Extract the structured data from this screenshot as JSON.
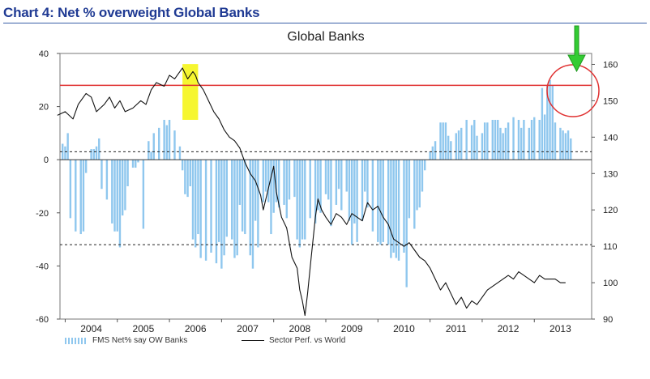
{
  "heading": "Chart 4: Net % overweight Global Banks",
  "chart_data": {
    "type": "bar+line",
    "title": "Global Banks",
    "xlabel": "",
    "ylabel_left": "",
    "ylabel_right": "",
    "x_ticks": [
      "2004",
      "2005",
      "2006",
      "2007",
      "2008",
      "2009",
      "2010",
      "2011",
      "2012",
      "2013"
    ],
    "x_range": [
      2003.9,
      2014.1
    ],
    "y_left": {
      "range": [
        -60,
        40
      ],
      "ticks": [
        40,
        20,
        0,
        -20,
        -40,
        -60
      ]
    },
    "y_right": {
      "range": [
        90,
        163
      ],
      "ticks": [
        160,
        150,
        140,
        130,
        120,
        110,
        100,
        90
      ]
    },
    "reference_lines": {
      "red_solid_left": 28,
      "dashed_upper_left": 3,
      "dashed_lower_left": -32
    },
    "series": [
      {
        "name": "FMS Net% say OW Banks",
        "type": "bar",
        "axis": "left",
        "color": "#8fc7ee",
        "x": [
          2003.95,
          2004.0,
          2004.05,
          2004.1,
          2004.2,
          2004.3,
          2004.35,
          2004.4,
          2004.5,
          2004.55,
          2004.6,
          2004.65,
          2004.7,
          2004.8,
          2004.9,
          2004.95,
          2005.0,
          2005.05,
          2005.1,
          2005.15,
          2005.2,
          2005.3,
          2005.35,
          2005.4,
          2005.5,
          2005.6,
          2005.65,
          2005.7,
          2005.8,
          2005.9,
          2005.95,
          2006.0,
          2006.1,
          2006.2,
          2006.25,
          2006.3,
          2006.35,
          2006.4,
          2006.45,
          2006.5,
          2006.55,
          2006.6,
          2006.7,
          2006.8,
          2006.9,
          2006.95,
          2007.0,
          2007.05,
          2007.1,
          2007.2,
          2007.25,
          2007.3,
          2007.35,
          2007.4,
          2007.45,
          2007.55,
          2007.6,
          2007.65,
          2007.7,
          2007.8,
          2007.85,
          2007.9,
          2007.95,
          2008.0,
          2008.05,
          2008.1,
          2008.2,
          2008.25,
          2008.3,
          2008.4,
          2008.45,
          2008.5,
          2008.55,
          2008.6,
          2008.7,
          2008.8,
          2008.85,
          2008.9,
          2009.0,
          2009.05,
          2009.1,
          2009.2,
          2009.25,
          2009.3,
          2009.4,
          2009.45,
          2009.5,
          2009.55,
          2009.6,
          2009.7,
          2009.75,
          2009.8,
          2009.9,
          2010.0,
          2010.05,
          2010.1,
          2010.2,
          2010.25,
          2010.3,
          2010.35,
          2010.4,
          2010.5,
          2010.55,
          2010.6,
          2010.7,
          2010.75,
          2010.8,
          2010.85,
          2010.9,
          2011.0,
          2011.05,
          2011.1,
          2011.2,
          2011.25,
          2011.3,
          2011.35,
          2011.4,
          2011.5,
          2011.55,
          2011.6,
          2011.7,
          2011.8,
          2011.85,
          2011.9,
          2012.0,
          2012.05,
          2012.1,
          2012.2,
          2012.25,
          2012.3,
          2012.35,
          2012.4,
          2012.45,
          2012.5,
          2012.6,
          2012.7,
          2012.75,
          2012.8,
          2012.9,
          2012.95,
          2013.0,
          2013.1,
          2013.15,
          2013.2,
          2013.25,
          2013.3,
          2013.35,
          2013.4,
          2013.5,
          2013.55,
          2013.6,
          2013.65,
          2013.7
        ],
        "values": [
          6,
          5,
          10,
          -22,
          -27,
          -28,
          -27,
          -5,
          4,
          4,
          5,
          8,
          -11,
          -15,
          -24,
          -27,
          -27,
          -33,
          -21,
          -19,
          -10,
          -3,
          -3,
          -1,
          -26,
          7,
          3,
          10,
          12,
          15,
          13,
          15,
          11,
          5,
          -4,
          -13,
          -14,
          -10,
          -30,
          -33,
          -28,
          -37,
          -38,
          -35,
          -39,
          -31,
          -41,
          -36,
          -29,
          -30,
          -37,
          -36,
          -17,
          -27,
          -28,
          -36,
          -41,
          -23,
          -33,
          -16,
          -12,
          -16,
          -28,
          -20,
          -16,
          -18,
          -17,
          -22,
          -15,
          -14,
          -30,
          -33,
          -30,
          -30,
          -22,
          -24,
          -19,
          -20,
          -13,
          -15,
          -25,
          -17,
          -11,
          -19,
          -12,
          -23,
          -32,
          -24,
          -31,
          -23,
          -12,
          -18,
          -27,
          -31,
          -32,
          -31,
          -32,
          -37,
          -35,
          -37,
          -38,
          -35,
          -48,
          -22,
          -26,
          -19,
          -18,
          -12,
          -4,
          3,
          5,
          7,
          14,
          14,
          14,
          9,
          7,
          10,
          11,
          12,
          15,
          13,
          15,
          9,
          10,
          14,
          14,
          15,
          15,
          15,
          12,
          10,
          12,
          14,
          16,
          15,
          12,
          15,
          12,
          15,
          16,
          15,
          27,
          17,
          28,
          30,
          28,
          14,
          12,
          11,
          10,
          11,
          8
        ]
      },
      {
        "name": "Sector Perf. vs World",
        "type": "line",
        "axis": "right",
        "color": "#111111",
        "x": [
          2003.85,
          2004.0,
          2004.15,
          2004.25,
          2004.4,
          2004.5,
          2004.6,
          2004.75,
          2004.85,
          2004.95,
          2005.05,
          2005.15,
          2005.3,
          2005.45,
          2005.55,
          2005.65,
          2005.75,
          2005.9,
          2006.0,
          2006.1,
          2006.2,
          2006.25,
          2006.35,
          2006.45,
          2006.5,
          2006.55,
          2006.65,
          2006.75,
          2006.85,
          2006.95,
          2007.05,
          2007.15,
          2007.25,
          2007.35,
          2007.45,
          2007.55,
          2007.65,
          2007.75,
          2007.8,
          2007.9,
          2008.0,
          2008.05,
          2008.15,
          2008.25,
          2008.35,
          2008.45,
          2008.5,
          2008.55,
          2008.6,
          2008.65,
          2008.72,
          2008.8,
          2008.85,
          2008.92,
          2009.0,
          2009.1,
          2009.2,
          2009.3,
          2009.4,
          2009.5,
          2009.6,
          2009.7,
          2009.8,
          2009.9,
          2010.0,
          2010.1,
          2010.2,
          2010.3,
          2010.4,
          2010.5,
          2010.6,
          2010.7,
          2010.8,
          2010.9,
          2011.0,
          2011.1,
          2011.2,
          2011.3,
          2011.4,
          2011.5,
          2011.6,
          2011.7,
          2011.8,
          2011.9,
          2012.0,
          2012.1,
          2012.2,
          2012.3,
          2012.4,
          2012.5,
          2012.6,
          2012.7,
          2012.8,
          2012.9,
          2013.0,
          2013.1,
          2013.2,
          2013.3,
          2013.4,
          2013.5,
          2013.55,
          2013.6
        ],
        "values": [
          146,
          147,
          145,
          149,
          152,
          151,
          147,
          149,
          151,
          148,
          150,
          147,
          148,
          150,
          149,
          153,
          155,
          154,
          157,
          156,
          158,
          159,
          156,
          158,
          157,
          155,
          153,
          150,
          147,
          145,
          142,
          140,
          139,
          137,
          133,
          130,
          128,
          124,
          120,
          126,
          132,
          125,
          118,
          115,
          107,
          104,
          98,
          95,
          91,
          97,
          107,
          118,
          123,
          120,
          118,
          116,
          119,
          118,
          116,
          119,
          118,
          117,
          122,
          120,
          121,
          118,
          116,
          112,
          111,
          110,
          111,
          109,
          107,
          106,
          104,
          101,
          98,
          100,
          97,
          94,
          96,
          93,
          95,
          94,
          96,
          98,
          99,
          100,
          101,
          102,
          101,
          103,
          102,
          101,
          100,
          102,
          101,
          101,
          101,
          100,
          100,
          100
        ]
      }
    ],
    "legend_position": "bottom-left",
    "grid": false
  }
}
